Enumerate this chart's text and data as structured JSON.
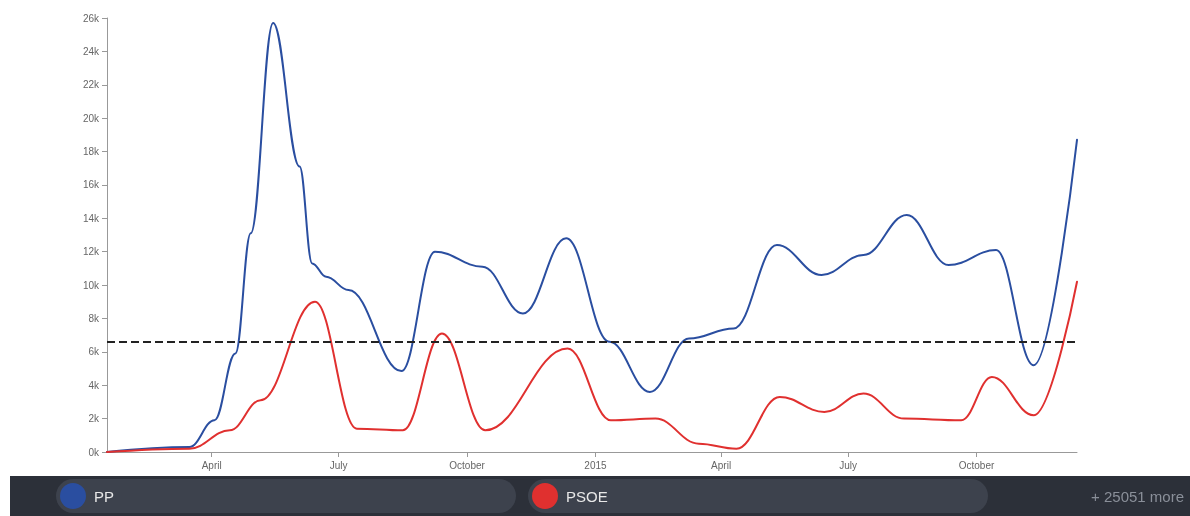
{
  "chart_data": {
    "type": "line",
    "xlim": [
      "2014-01-16",
      "2015-12-12"
    ],
    "xticks": [
      {
        "value": "2014-04-01",
        "label": "April"
      },
      {
        "value": "2014-07-01",
        "label": "July"
      },
      {
        "value": "2014-10-01",
        "label": "October"
      },
      {
        "value": "2015-01-01",
        "label": "2015"
      },
      {
        "value": "2015-04-01",
        "label": "April"
      },
      {
        "value": "2015-07-01",
        "label": "July"
      },
      {
        "value": "2015-10-01",
        "label": "October"
      }
    ],
    "ylim": [
      0,
      26000
    ],
    "yticks": [
      {
        "value": 0,
        "label": "0k"
      },
      {
        "value": 2000,
        "label": "2k"
      },
      {
        "value": 4000,
        "label": "4k"
      },
      {
        "value": 6000,
        "label": "6k"
      },
      {
        "value": 8000,
        "label": "8k"
      },
      {
        "value": 10000,
        "label": "10k"
      },
      {
        "value": 12000,
        "label": "12k"
      },
      {
        "value": 14000,
        "label": "14k"
      },
      {
        "value": 16000,
        "label": "16k"
      },
      {
        "value": 18000,
        "label": "18k"
      },
      {
        "value": 20000,
        "label": "20k"
      },
      {
        "value": 22000,
        "label": "22k"
      },
      {
        "value": 24000,
        "label": "24k"
      },
      {
        "value": 26000,
        "label": "26k"
      }
    ],
    "grid": false,
    "legend": "bottom",
    "marker": "none",
    "line_style": "solid",
    "series": [
      {
        "name": "PP",
        "color": "#2a4ea0",
        "x": [
          "2014-01-16",
          "2014-03-16",
          "2014-04-03",
          "2014-04-18",
          "2014-04-29",
          "2014-05-15",
          "2014-06-03",
          "2014-06-12",
          "2014-06-22",
          "2014-07-08",
          "2014-08-15",
          "2014-09-08",
          "2014-10-12",
          "2014-11-10",
          "2014-12-11",
          "2015-01-11",
          "2015-02-09",
          "2015-03-09",
          "2015-04-10",
          "2015-05-11",
          "2015-06-12",
          "2015-07-12",
          "2015-08-12",
          "2015-09-11",
          "2015-10-15",
          "2015-11-11",
          "2015-12-12"
        ],
        "values": [
          0,
          300,
          1900,
          5900,
          13100,
          25700,
          17100,
          11300,
          10500,
          9700,
          4850,
          12000,
          11100,
          8300,
          12800,
          6600,
          3600,
          6800,
          7400,
          12400,
          10600,
          11800,
          14200,
          11200,
          12100,
          5200,
          18700
        ]
      },
      {
        "name": "PSOE",
        "color": "#e0302f",
        "x": [
          "2014-01-16",
          "2014-03-16",
          "2014-04-14",
          "2014-05-06",
          "2014-06-14",
          "2014-07-14",
          "2014-08-16",
          "2014-09-13",
          "2014-10-14",
          "2014-12-12",
          "2015-01-12",
          "2015-02-13",
          "2015-03-16",
          "2015-04-12",
          "2015-05-13",
          "2015-06-14",
          "2015-07-12",
          "2015-08-10",
          "2015-09-20",
          "2015-10-12",
          "2015-11-11",
          "2015-12-12"
        ],
        "values": [
          0,
          200,
          1300,
          3100,
          9000,
          1400,
          1300,
          7100,
          1300,
          6200,
          1900,
          2000,
          500,
          200,
          3300,
          2400,
          3500,
          2000,
          1900,
          4500,
          2200,
          10200
        ]
      }
    ],
    "ref_lines": [
      {
        "axis": "y",
        "value": 6600,
        "color": "#222222",
        "line_style": "dashed"
      }
    ],
    "annotations": [
      "+ 25051 more"
    ]
  }
}
